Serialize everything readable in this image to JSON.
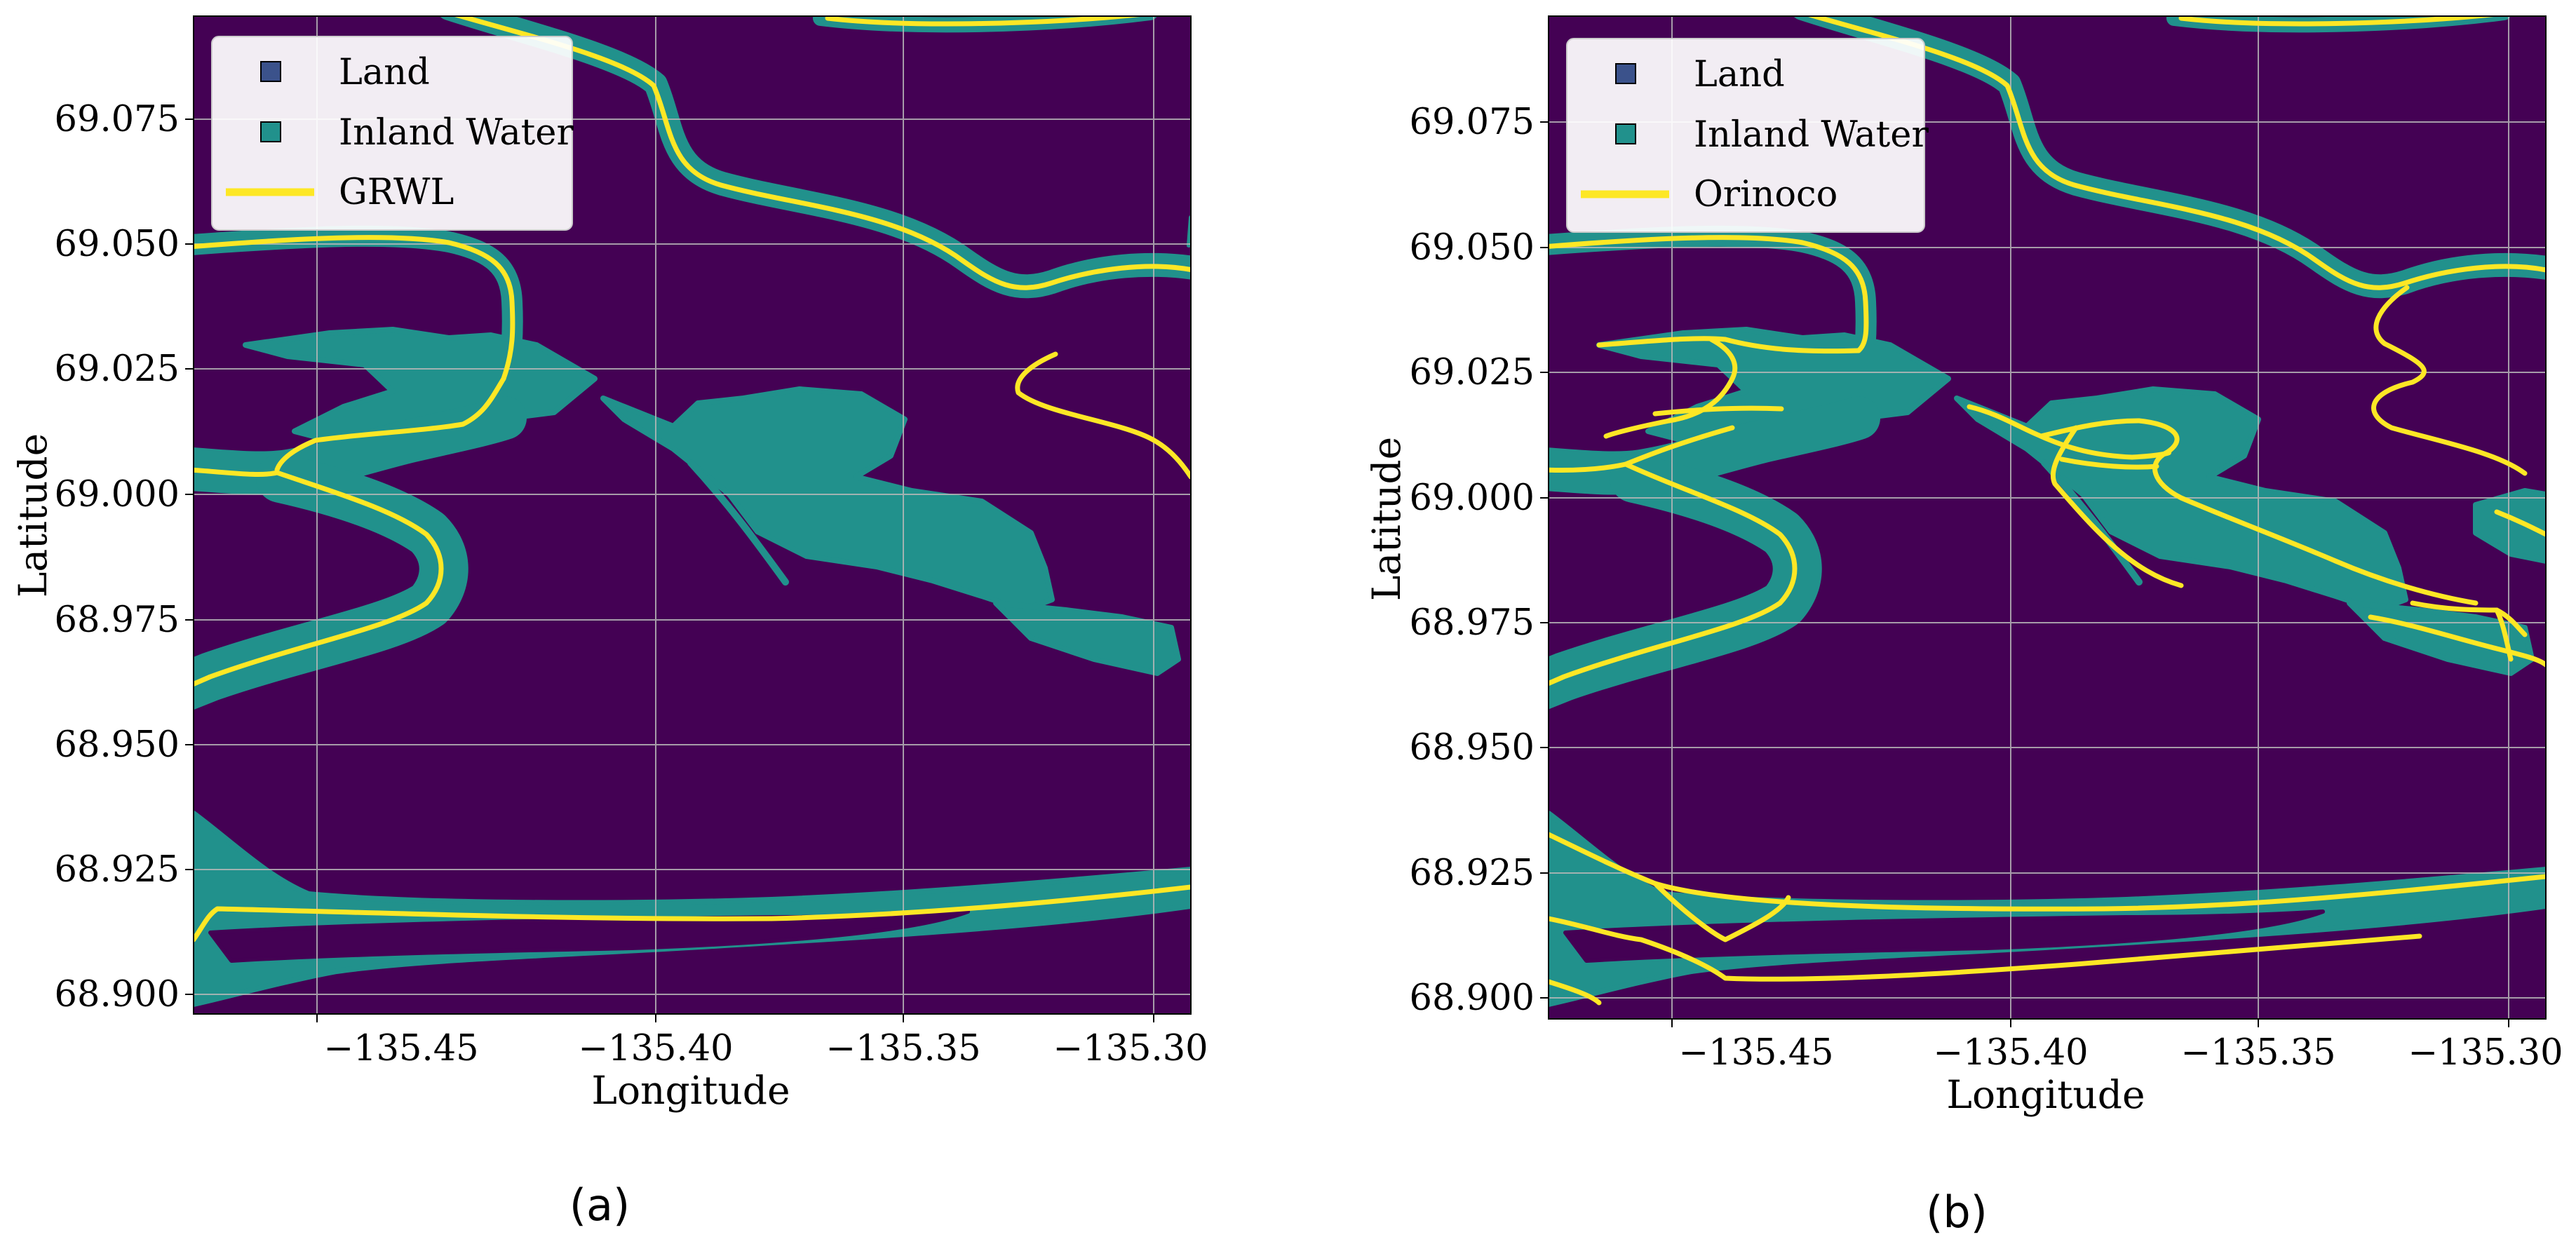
{
  "colors": {
    "land": "#440154",
    "water": "#21918c",
    "line": "#fde725",
    "grid": "#b8b8b8",
    "legend_land_swatch": "#3b528b",
    "legend_water_swatch": "#21918c"
  },
  "panels": [
    {
      "caption": "(a)",
      "xlabel": "Longitude",
      "ylabel": "Latitude",
      "xticks": [
        "−135.45",
        "−135.40",
        "−135.35",
        "−135.30"
      ],
      "yticks": [
        "69.075",
        "69.050",
        "69.025",
        "69.000",
        "68.975",
        "68.950",
        "68.925",
        "68.900"
      ],
      "legend": [
        {
          "label": "Land",
          "kind": "land"
        },
        {
          "label": "Inland Water",
          "kind": "water"
        },
        {
          "label": "GRWL",
          "kind": "line"
        }
      ]
    },
    {
      "caption": "(b)",
      "xlabel": "Longitude",
      "ylabel": "Latitude",
      "xticks": [
        "−135.45",
        "−135.40",
        "−135.35",
        "−135.30"
      ],
      "yticks": [
        "69.075",
        "69.050",
        "69.025",
        "69.000",
        "68.975",
        "68.950",
        "68.925",
        "68.900"
      ],
      "legend": [
        {
          "label": "Land",
          "kind": "land"
        },
        {
          "label": "Inland Water",
          "kind": "water"
        },
        {
          "label": "Orinoco",
          "kind": "line"
        }
      ]
    }
  ]
}
